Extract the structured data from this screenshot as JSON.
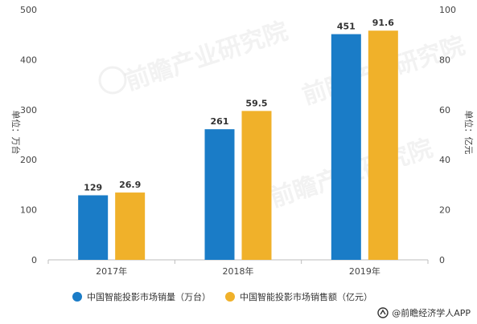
{
  "chart_data": {
    "type": "bar",
    "categories": [
      "2017年",
      "2018年",
      "2019年"
    ],
    "series": [
      {
        "name": "中国智能投影市场销量（万台）",
        "axis": "left",
        "values": [
          129,
          261,
          451
        ],
        "labels": [
          "129",
          "261",
          "451"
        ],
        "color": "#1a7cc7"
      },
      {
        "name": "中国智能投影市场销售额（亿元）",
        "axis": "right",
        "values": [
          26.9,
          59.5,
          91.6
        ],
        "labels": [
          "26.9",
          "59.5",
          "91.6"
        ],
        "color": "#f0b12a"
      }
    ],
    "ylabel_left": "单位：万台",
    "ylabel_right": "单位：亿元",
    "ylim_left": [
      0,
      500
    ],
    "ylim_right": [
      0,
      100
    ],
    "yticks_left": [
      "0",
      "100",
      "200",
      "300",
      "400",
      "500"
    ],
    "yticks_right": [
      "0",
      "20",
      "40",
      "60",
      "80",
      "100"
    ],
    "grid": false,
    "legend_position": "bottom"
  },
  "legend": {
    "item1": "中国智能投影市场销量（万台）",
    "item2": "中国智能投影市场销售额（亿元）"
  },
  "credit": "@前瞻经济学人APP"
}
